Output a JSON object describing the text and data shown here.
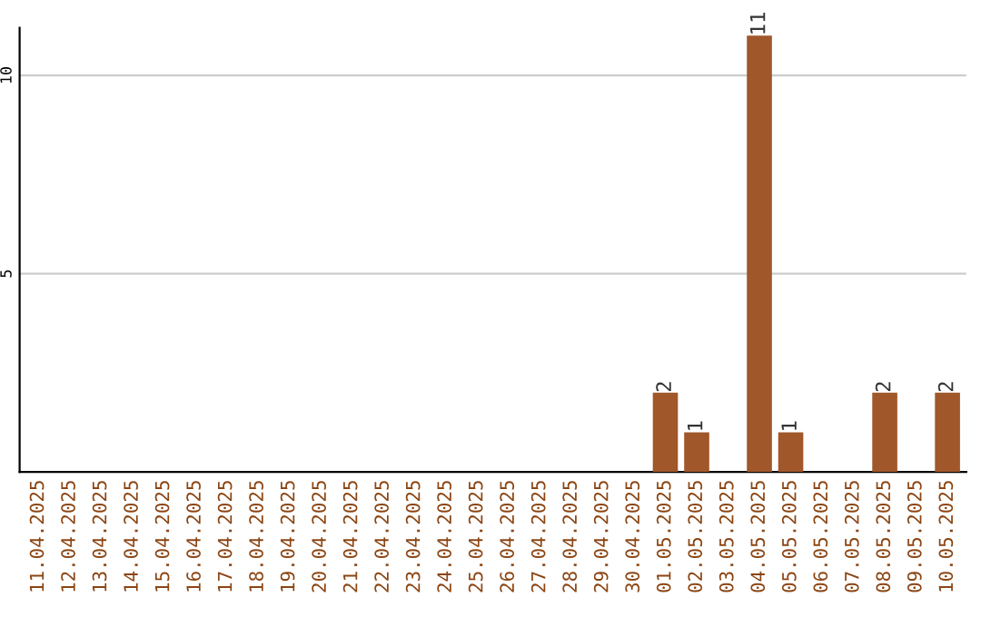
{
  "chart_data": {
    "type": "bar",
    "categories": [
      "11.04.2025",
      "12.04.2025",
      "13.04.2025",
      "14.04.2025",
      "15.04.2025",
      "16.04.2025",
      "17.04.2025",
      "18.04.2025",
      "19.04.2025",
      "20.04.2025",
      "21.04.2025",
      "22.04.2025",
      "23.04.2025",
      "24.04.2025",
      "25.04.2025",
      "26.04.2025",
      "27.04.2025",
      "28.04.2025",
      "29.04.2025",
      "30.04.2025",
      "01.05.2025",
      "02.05.2025",
      "03.05.2025",
      "04.05.2025",
      "05.05.2025",
      "06.05.2025",
      "07.05.2025",
      "08.05.2025",
      "09.05.2025",
      "10.05.2025"
    ],
    "values": [
      0,
      0,
      0,
      0,
      0,
      0,
      0,
      0,
      0,
      0,
      0,
      0,
      0,
      0,
      0,
      0,
      0,
      0,
      0,
      0,
      2,
      1,
      0,
      11,
      1,
      0,
      0,
      2,
      0,
      2
    ],
    "value_labels": [
      null,
      null,
      null,
      null,
      null,
      null,
      null,
      null,
      null,
      null,
      null,
      null,
      null,
      null,
      null,
      null,
      null,
      null,
      null,
      null,
      "2",
      "1",
      null,
      "11",
      "1",
      null,
      null,
      "2",
      null,
      "2"
    ],
    "color": "#a0572a",
    "ylim": [
      0,
      11.2
    ],
    "yticks": [
      5,
      10
    ],
    "grid": "y"
  }
}
